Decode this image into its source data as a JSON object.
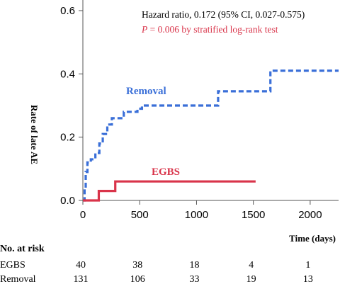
{
  "chart_data": {
    "type": "line",
    "step": true,
    "xlabel": "Time (days)",
    "ylabel": "Rate of late AE",
    "xlim": [
      0,
      2250
    ],
    "ylim": [
      0,
      0.6
    ],
    "xticks": [
      0,
      500,
      1000,
      1500,
      2000
    ],
    "yticks": [
      0.0,
      0.2,
      0.4,
      0.6
    ],
    "xtick_labels": [
      "0",
      "500",
      "1000",
      "1500",
      "2000"
    ],
    "ytick_labels": [
      "0.0",
      "0.2",
      "0.4",
      "0.6"
    ],
    "annotations": {
      "hazard_ratio": "Hazard ratio, 0.172 (95% CI, 0.027-0.575)",
      "p_label": "P",
      "p_rest": " = 0.006 by stratified log-rank test"
    },
    "series": [
      {
        "name": "Removal",
        "color": "#3a6fd8",
        "style": "dashed",
        "points": [
          [
            0,
            0
          ],
          [
            15,
            0.04
          ],
          [
            25,
            0.09
          ],
          [
            40,
            0.12
          ],
          [
            70,
            0.13
          ],
          [
            110,
            0.15
          ],
          [
            145,
            0.18
          ],
          [
            175,
            0.21
          ],
          [
            215,
            0.24
          ],
          [
            255,
            0.26
          ],
          [
            320,
            0.26
          ],
          [
            360,
            0.28
          ],
          [
            420,
            0.28
          ],
          [
            480,
            0.29
          ],
          [
            520,
            0.3
          ],
          [
            700,
            0.3
          ],
          [
            1175,
            0.3
          ],
          [
            1190,
            0.345
          ],
          [
            1640,
            0.345
          ],
          [
            1650,
            0.41
          ],
          [
            2250,
            0.41
          ]
        ]
      },
      {
        "name": "EGBS",
        "color": "#d9344a",
        "style": "solid",
        "points": [
          [
            0,
            0
          ],
          [
            140,
            0
          ],
          [
            140,
            0.03
          ],
          [
            285,
            0.03
          ],
          [
            285,
            0.06
          ],
          [
            1520,
            0.06
          ]
        ]
      }
    ],
    "at_risk": {
      "title": "No. at risk",
      "times": [
        0,
        500,
        1000,
        1500,
        2000
      ],
      "rows": [
        {
          "label": "EGBS",
          "values": [
            "40",
            "38",
            "18",
            "4",
            "1"
          ]
        },
        {
          "label": "Removal",
          "values": [
            "131",
            "106",
            "33",
            "19",
            "13"
          ]
        }
      ]
    }
  }
}
